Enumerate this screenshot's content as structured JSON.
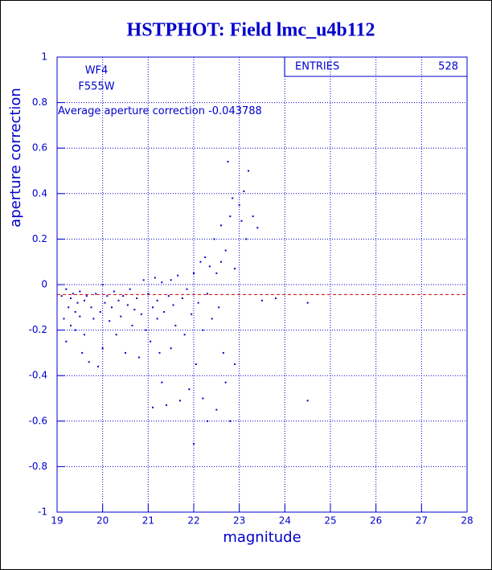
{
  "chart_data": {
    "type": "scatter",
    "title": "HSTPHOT: Field lmc_u4b112",
    "x_label": "magnitude",
    "y_label": "aperture correction",
    "chip": "WF4",
    "filter": "F555W",
    "average_label": "Average aperture correction",
    "average_value": -0.043788,
    "stats_label": "ENTRIES",
    "entries": 528,
    "color": "#0000cc",
    "average_color": "#cc0000",
    "grid": true,
    "xlim": [
      19,
      28
    ],
    "ylim": [
      -1,
      1
    ],
    "xticks": [
      19,
      20,
      21,
      22,
      23,
      24,
      25,
      26,
      27,
      28
    ],
    "yticks": [
      -1,
      -0.8,
      -0.6,
      -0.4,
      -0.2,
      0,
      0.2,
      0.4,
      0.6,
      0.8,
      1
    ],
    "x": [
      19.1,
      19.15,
      19.2,
      19.2,
      19.25,
      19.3,
      19.3,
      19.35,
      19.4,
      19.4,
      19.45,
      19.5,
      19.5,
      19.55,
      19.6,
      19.6,
      19.65,
      19.7,
      19.75,
      19.8,
      19.85,
      19.9,
      19.95,
      20.0,
      20.0,
      20.05,
      20.1,
      20.15,
      20.2,
      20.25,
      20.3,
      20.35,
      20.4,
      20.45,
      20.5,
      20.55,
      20.6,
      20.65,
      20.7,
      20.75,
      20.8,
      20.85,
      20.9,
      20.95,
      21.0,
      21.05,
      21.1,
      21.1,
      21.15,
      21.2,
      21.2,
      21.25,
      21.3,
      21.3,
      21.35,
      21.4,
      21.45,
      21.5,
      21.5,
      21.55,
      21.6,
      21.65,
      21.7,
      21.75,
      21.8,
      21.85,
      21.9,
      21.95,
      22.0,
      22.0,
      22.05,
      22.1,
      22.15,
      22.2,
      22.2,
      22.25,
      22.3,
      22.3,
      22.35,
      22.4,
      22.45,
      22.5,
      22.5,
      22.55,
      22.6,
      22.6,
      22.65,
      22.7,
      22.7,
      22.75,
      22.8,
      22.8,
      22.85,
      22.9,
      22.9,
      23.0,
      23.05,
      23.1,
      23.15,
      23.2,
      23.3,
      23.4,
      23.5,
      23.8,
      24.5,
      24.5
    ],
    "values": [
      -0.05,
      -0.15,
      -0.25,
      -0.02,
      -0.1,
      -0.18,
      -0.06,
      -0.04,
      -0.12,
      -0.2,
      -0.08,
      -0.03,
      -0.14,
      -0.3,
      -0.07,
      -0.22,
      -0.05,
      -0.34,
      -0.1,
      -0.15,
      -0.04,
      -0.36,
      -0.12,
      0.0,
      -0.28,
      -0.08,
      -0.05,
      -0.16,
      -0.1,
      -0.03,
      -0.22,
      -0.07,
      -0.14,
      -0.05,
      -0.3,
      -0.09,
      -0.02,
      -0.18,
      -0.11,
      -0.06,
      -0.32,
      -0.13,
      0.02,
      -0.2,
      -0.04,
      -0.25,
      -0.1,
      -0.54,
      0.03,
      -0.15,
      -0.07,
      -0.3,
      0.01,
      -0.43,
      -0.12,
      -0.53,
      -0.05,
      0.02,
      -0.28,
      -0.09,
      -0.18,
      0.04,
      -0.51,
      -0.06,
      -0.22,
      -0.02,
      -0.46,
      -0.13,
      0.05,
      -0.7,
      -0.35,
      -0.08,
      0.1,
      -0.2,
      -0.5,
      0.12,
      -0.04,
      -0.6,
      0.08,
      -0.15,
      0.2,
      0.05,
      -0.55,
      -0.1,
      0.26,
      0.1,
      -0.3,
      0.15,
      -0.43,
      0.54,
      0.3,
      -0.6,
      0.38,
      0.07,
      -0.35,
      0.35,
      0.28,
      0.41,
      0.2,
      0.5,
      0.3,
      0.25,
      -0.07,
      -0.06,
      -0.08,
      -0.51
    ]
  }
}
